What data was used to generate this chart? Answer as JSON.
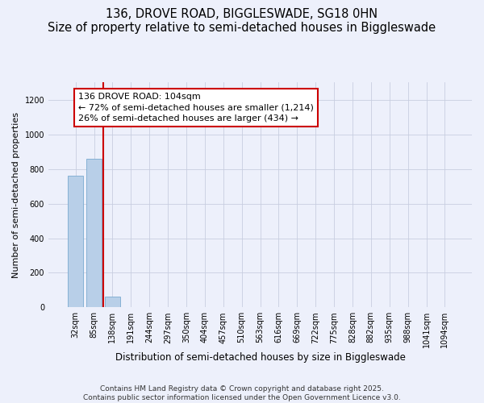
{
  "title1": "136, DROVE ROAD, BIGGLESWADE, SG18 0HN",
  "title2": "Size of property relative to semi-detached houses in Biggleswade",
  "xlabel": "Distribution of semi-detached houses by size in Biggleswade",
  "ylabel": "Number of semi-detached properties",
  "categories": [
    "32sqm",
    "85sqm",
    "138sqm",
    "191sqm",
    "244sqm",
    "297sqm",
    "350sqm",
    "404sqm",
    "457sqm",
    "510sqm",
    "563sqm",
    "616sqm",
    "669sqm",
    "722sqm",
    "775sqm",
    "828sqm",
    "882sqm",
    "935sqm",
    "988sqm",
    "1041sqm",
    "1094sqm"
  ],
  "values": [
    760,
    860,
    60,
    0,
    0,
    0,
    0,
    0,
    0,
    0,
    0,
    0,
    0,
    0,
    0,
    0,
    0,
    0,
    0,
    0,
    0
  ],
  "bar_color": "#b8cfe8",
  "bar_edge_color": "#7aaad0",
  "annotation_line1": "136 DROVE ROAD: 104sqm",
  "annotation_line2": "← 72% of semi-detached houses are smaller (1,214)",
  "annotation_line3": "26% of semi-detached houses are larger (434) →",
  "vline_color": "#cc0000",
  "vline_x": 1.5,
  "ylim": [
    0,
    1300
  ],
  "yticks": [
    0,
    200,
    400,
    600,
    800,
    1000,
    1200
  ],
  "footnote1": "Contains HM Land Registry data © Crown copyright and database right 2025.",
  "footnote2": "Contains public sector information licensed under the Open Government Licence v3.0.",
  "bg_color": "#edf0fb",
  "grid_color": "#c8cee0",
  "title_fontsize": 10.5,
  "subtitle_fontsize": 9,
  "annotation_fontsize": 8,
  "tick_fontsize": 7,
  "ylabel_fontsize": 8,
  "xlabel_fontsize": 8.5,
  "footnote_fontsize": 6.5
}
